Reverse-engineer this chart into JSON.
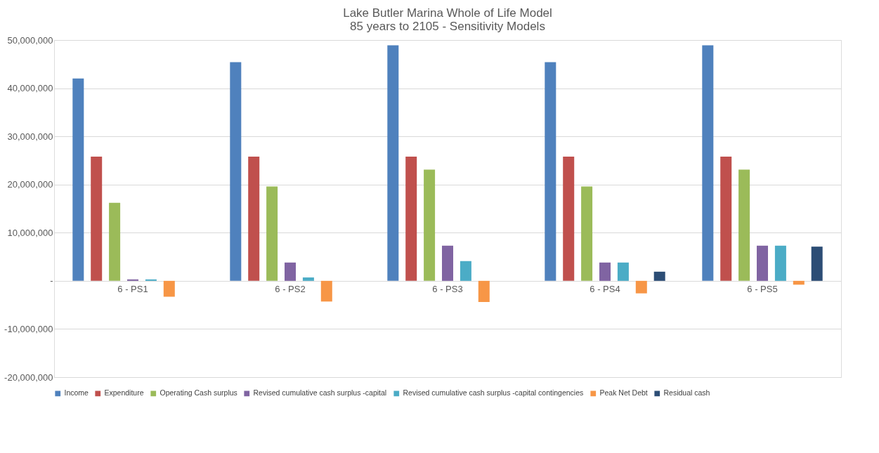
{
  "chart_data": {
    "type": "bar",
    "title": "Lake Butler Marina Whole of Life Model\n85 years to 2105 - Sensitivity Models",
    "categories": [
      "6 - PS1",
      "6 - PS2",
      "6 - PS3",
      "6 - PS4",
      "6 - PS5"
    ],
    "series": [
      {
        "name": "Income",
        "color": "#4f81bd",
        "values": [
          42000000,
          45400000,
          48900000,
          45400000,
          48900000
        ]
      },
      {
        "name": "Expenditure",
        "color": "#c0504d",
        "values": [
          25800000,
          25800000,
          25800000,
          25800000,
          25800000
        ]
      },
      {
        "name": "Operating Cash surplus",
        "color": "#9bbb59",
        "values": [
          16200000,
          19600000,
          23100000,
          19600000,
          23100000
        ]
      },
      {
        "name": "Revised cumulative cash surplus -capital",
        "color": "#8064a2",
        "values": [
          300000,
          3800000,
          7300000,
          3800000,
          7300000
        ]
      },
      {
        "name": "Revised cumulative cash surplus -capital contingencies",
        "color": "#4bacc6",
        "values": [
          300000,
          700000,
          4100000,
          3800000,
          7300000
        ]
      },
      {
        "name": "Peak Net Debt",
        "color": "#f79646",
        "values": [
          -3300000,
          -4300000,
          -4400000,
          -2600000,
          -800000
        ]
      },
      {
        "name": "Residual cash",
        "color": "#2c4d75",
        "values": [
          null,
          null,
          null,
          1900000,
          7100000
        ]
      }
    ],
    "ylim": [
      -20000000,
      50000000
    ],
    "yticks": [
      {
        "value": -20000000,
        "label": "-20,000,000"
      },
      {
        "value": -10000000,
        "label": "-10,000,000"
      },
      {
        "value": 0,
        "label": "-"
      },
      {
        "value": 10000000,
        "label": "10,000,000"
      },
      {
        "value": 20000000,
        "label": "20,000,000"
      },
      {
        "value": 30000000,
        "label": "30,000,000"
      },
      {
        "value": 40000000,
        "label": "40,000,000"
      },
      {
        "value": 50000000,
        "label": "50,000,000"
      }
    ],
    "grid": "y",
    "legend": "bottom"
  }
}
